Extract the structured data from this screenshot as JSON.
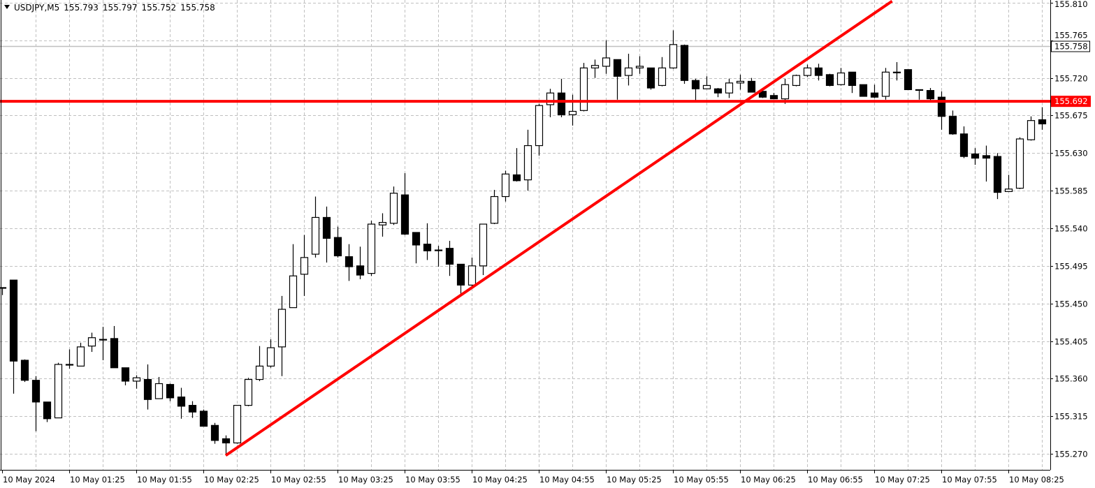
{
  "header": {
    "symbol": "USDJPY,M5",
    "open": "155.793",
    "high": "155.797",
    "low": "155.752",
    "close": "155.758"
  },
  "colors": {
    "grid": "#c0c0c0",
    "bull_fill": "#ffffff",
    "bear_fill": "#000000",
    "candle_outline": "#000000",
    "drawing_line": "#ff0000",
    "bid_line": "#c0c0c0"
  },
  "chart_data": {
    "type": "candlestick",
    "title": "",
    "timeframe": "M5",
    "ylim": [
      155.27,
      155.81
    ],
    "grid": true,
    "y_ticks": [
      "155.270",
      "155.315",
      "155.360",
      "155.405",
      "155.450",
      "155.495",
      "155.540",
      "155.585",
      "155.630",
      "155.675",
      "155.720",
      "155.765",
      "155.810"
    ],
    "x_tick_labels": [
      "10 May 2024",
      "10 May 01:25",
      "10 May 01:55",
      "10 May 02:25",
      "10 May 02:55",
      "10 May 03:25",
      "10 May 03:55",
      "10 May 04:25",
      "10 May 04:55",
      "10 May 05:25",
      "10 May 05:55",
      "10 May 06:25",
      "10 May 06:55",
      "10 May 07:25",
      "10 May 07:55",
      "10 May 08:25"
    ],
    "columns": [
      "time",
      "open",
      "high",
      "low",
      "close"
    ],
    "candles": [
      [
        "00:55",
        155.469,
        155.469,
        155.46,
        155.469
      ],
      [
        "01:00",
        155.478,
        155.478,
        155.342,
        155.381
      ],
      [
        "01:05",
        155.382,
        155.383,
        155.356,
        155.358
      ],
      [
        "01:10",
        155.358,
        155.363,
        155.297,
        155.332
      ],
      [
        "01:15",
        155.332,
        155.332,
        155.308,
        155.312
      ],
      [
        "01:20",
        155.313,
        155.379,
        155.313,
        155.377
      ],
      [
        "01:25",
        155.377,
        155.395,
        155.372,
        155.377
      ],
      [
        "01:30",
        155.375,
        155.403,
        155.375,
        155.398
      ],
      [
        "01:35",
        155.399,
        155.415,
        155.392,
        155.409
      ],
      [
        "01:40",
        155.407,
        155.422,
        155.382,
        155.407
      ],
      [
        "01:45",
        155.408,
        155.423,
        155.373,
        155.373
      ],
      [
        "01:50",
        155.373,
        155.373,
        155.352,
        155.357
      ],
      [
        "01:55",
        155.357,
        155.364,
        155.348,
        155.361
      ],
      [
        "02:00",
        155.359,
        155.377,
        155.323,
        155.335
      ],
      [
        "02:05",
        155.336,
        155.362,
        155.336,
        155.354
      ],
      [
        "02:10",
        155.353,
        155.354,
        155.333,
        155.337
      ],
      [
        "02:15",
        155.338,
        155.349,
        155.312,
        155.327
      ],
      [
        "02:20",
        155.328,
        155.333,
        155.313,
        155.32
      ],
      [
        "02:25",
        155.321,
        155.323,
        155.303,
        155.303
      ],
      [
        "02:30",
        155.304,
        155.307,
        155.282,
        155.286
      ],
      [
        "02:35",
        155.288,
        155.292,
        155.268,
        155.283
      ],
      [
        "02:40",
        155.283,
        155.328,
        155.282,
        155.328
      ],
      [
        "02:45",
        155.328,
        155.361,
        155.327,
        155.359
      ],
      [
        "02:50",
        155.359,
        155.399,
        155.357,
        155.375
      ],
      [
        "02:55",
        155.375,
        155.407,
        155.373,
        155.397
      ],
      [
        "03:00",
        155.398,
        155.459,
        155.363,
        155.443
      ],
      [
        "03:05",
        155.445,
        155.521,
        155.445,
        155.483
      ],
      [
        "03:10",
        155.485,
        155.532,
        155.459,
        155.505
      ],
      [
        "03:15",
        155.509,
        155.578,
        155.505,
        155.553
      ],
      [
        "03:20",
        155.553,
        155.566,
        155.499,
        155.528
      ],
      [
        "03:25",
        155.529,
        155.542,
        155.505,
        155.507
      ],
      [
        "03:30",
        155.506,
        155.521,
        155.477,
        155.494
      ],
      [
        "03:35",
        155.495,
        155.518,
        155.479,
        155.484
      ],
      [
        "03:40",
        155.486,
        155.549,
        155.483,
        155.545
      ],
      [
        "03:45",
        155.544,
        155.558,
        155.53,
        155.547
      ],
      [
        "03:50",
        155.546,
        155.59,
        155.544,
        155.582
      ],
      [
        "03:55",
        155.58,
        155.606,
        155.532,
        155.533
      ],
      [
        "04:00",
        155.535,
        155.535,
        155.498,
        155.52
      ],
      [
        "04:05",
        155.521,
        155.546,
        155.502,
        155.513
      ],
      [
        "04:10",
        155.514,
        155.519,
        155.494,
        155.514
      ],
      [
        "04:15",
        155.516,
        155.525,
        155.483,
        155.497
      ],
      [
        "04:20",
        155.497,
        155.497,
        155.461,
        155.472
      ],
      [
        "04:25",
        155.472,
        155.505,
        155.468,
        155.495
      ],
      [
        "04:30",
        155.495,
        155.545,
        155.484,
        155.545
      ],
      [
        "04:35",
        155.546,
        155.586,
        155.545,
        155.578
      ],
      [
        "04:40",
        155.578,
        155.609,
        155.572,
        155.605
      ],
      [
        "04:45",
        155.604,
        155.636,
        155.596,
        155.597
      ],
      [
        "04:50",
        155.598,
        155.658,
        155.585,
        155.639
      ],
      [
        "04:55",
        155.639,
        155.689,
        155.627,
        155.687
      ],
      [
        "05:00",
        155.688,
        155.707,
        155.673,
        155.702
      ],
      [
        "05:05",
        155.702,
        155.719,
        155.673,
        155.676
      ],
      [
        "05:10",
        155.676,
        155.7,
        155.663,
        155.68
      ],
      [
        "05:15",
        155.681,
        155.738,
        155.68,
        155.732
      ],
      [
        "05:20",
        155.732,
        155.742,
        155.72,
        155.735
      ],
      [
        "05:25",
        155.734,
        155.765,
        155.725,
        155.744
      ],
      [
        "05:30",
        155.742,
        155.742,
        155.694,
        155.722
      ],
      [
        "05:35",
        155.723,
        155.749,
        155.711,
        155.732
      ],
      [
        "05:40",
        155.732,
        155.746,
        155.725,
        155.734
      ],
      [
        "05:45",
        155.732,
        155.732,
        155.706,
        155.708
      ],
      [
        "05:50",
        155.711,
        155.745,
        155.71,
        155.732
      ],
      [
        "05:55",
        155.732,
        155.777,
        155.731,
        155.76
      ],
      [
        "06:00",
        155.759,
        155.76,
        155.713,
        155.717
      ],
      [
        "06:05",
        155.717,
        155.719,
        155.693,
        155.707
      ],
      [
        "06:10",
        155.707,
        155.722,
        155.707,
        155.711
      ],
      [
        "06:15",
        155.707,
        155.708,
        155.697,
        155.702
      ],
      [
        "06:20",
        155.702,
        155.719,
        155.696,
        155.714
      ],
      [
        "06:25",
        155.714,
        155.724,
        155.706,
        155.716
      ],
      [
        "06:30",
        155.716,
        155.72,
        155.703,
        155.703
      ],
      [
        "06:35",
        155.704,
        155.705,
        155.696,
        155.697
      ],
      [
        "06:40",
        155.699,
        155.702,
        155.695,
        155.695
      ],
      [
        "06:45",
        155.695,
        155.719,
        155.689,
        155.712
      ],
      [
        "06:50",
        155.711,
        155.724,
        155.71,
        155.723
      ],
      [
        "06:55",
        155.723,
        155.736,
        155.721,
        155.732
      ],
      [
        "07:00",
        155.732,
        155.737,
        155.717,
        155.723
      ],
      [
        "07:05",
        155.724,
        155.725,
        155.71,
        155.711
      ],
      [
        "07:10",
        155.712,
        155.732,
        155.711,
        155.726
      ],
      [
        "07:15",
        155.727,
        155.727,
        155.702,
        155.711
      ],
      [
        "07:20",
        155.712,
        155.712,
        155.698,
        155.698
      ],
      [
        "07:25",
        155.702,
        155.712,
        155.696,
        155.697
      ],
      [
        "07:30",
        155.698,
        155.732,
        155.694,
        155.727
      ],
      [
        "07:35",
        155.727,
        155.739,
        155.717,
        155.727
      ],
      [
        "07:40",
        155.73,
        155.73,
        155.706,
        155.706
      ],
      [
        "07:45",
        155.706,
        155.706,
        155.694,
        155.706
      ],
      [
        "07:50",
        155.705,
        155.708,
        155.693,
        155.695
      ],
      [
        "07:55",
        155.697,
        155.704,
        155.658,
        155.674
      ],
      [
        "08:00",
        155.674,
        155.681,
        155.652,
        155.653
      ],
      [
        "08:05",
        155.653,
        155.662,
        155.624,
        155.626
      ],
      [
        "08:10",
        155.629,
        155.636,
        155.616,
        155.624
      ],
      [
        "08:15",
        155.627,
        155.639,
        155.596,
        155.624
      ],
      [
        "08:20",
        155.626,
        155.63,
        155.575,
        155.583
      ],
      [
        "08:25",
        155.584,
        155.604,
        155.584,
        155.587
      ],
      [
        "08:30",
        155.588,
        155.649,
        155.587,
        155.647
      ],
      [
        "08:35",
        155.646,
        155.674,
        155.645,
        155.669
      ],
      [
        "08:40",
        155.67,
        155.685,
        155.658,
        155.665
      ]
    ],
    "horizontal_line": {
      "price": 155.692,
      "label": "155.692"
    },
    "bid_line": {
      "price": 155.758,
      "label": "155.758"
    },
    "trend_line": {
      "from": {
        "time": "02:35",
        "price": 155.268
      },
      "to": {
        "time": "07:33",
        "price": 155.812
      }
    }
  }
}
